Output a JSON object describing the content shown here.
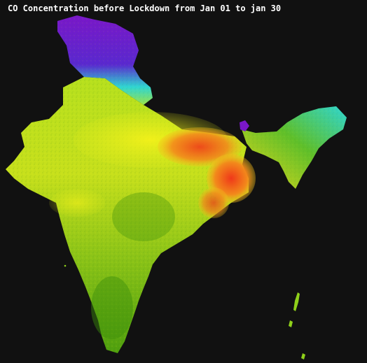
{
  "title": "CO Concentration before Lockdown from Jan 01 to jan 30",
  "colors": {
    "background": "#111111",
    "low": "#7a17c9",
    "low_mid": "#2fd6d2",
    "mid": "#3c9a10",
    "mid_high": "#9fd01a",
    "high": "#f2f21a",
    "very_high": "#f39a1a",
    "peak": "#f2301a"
  }
}
